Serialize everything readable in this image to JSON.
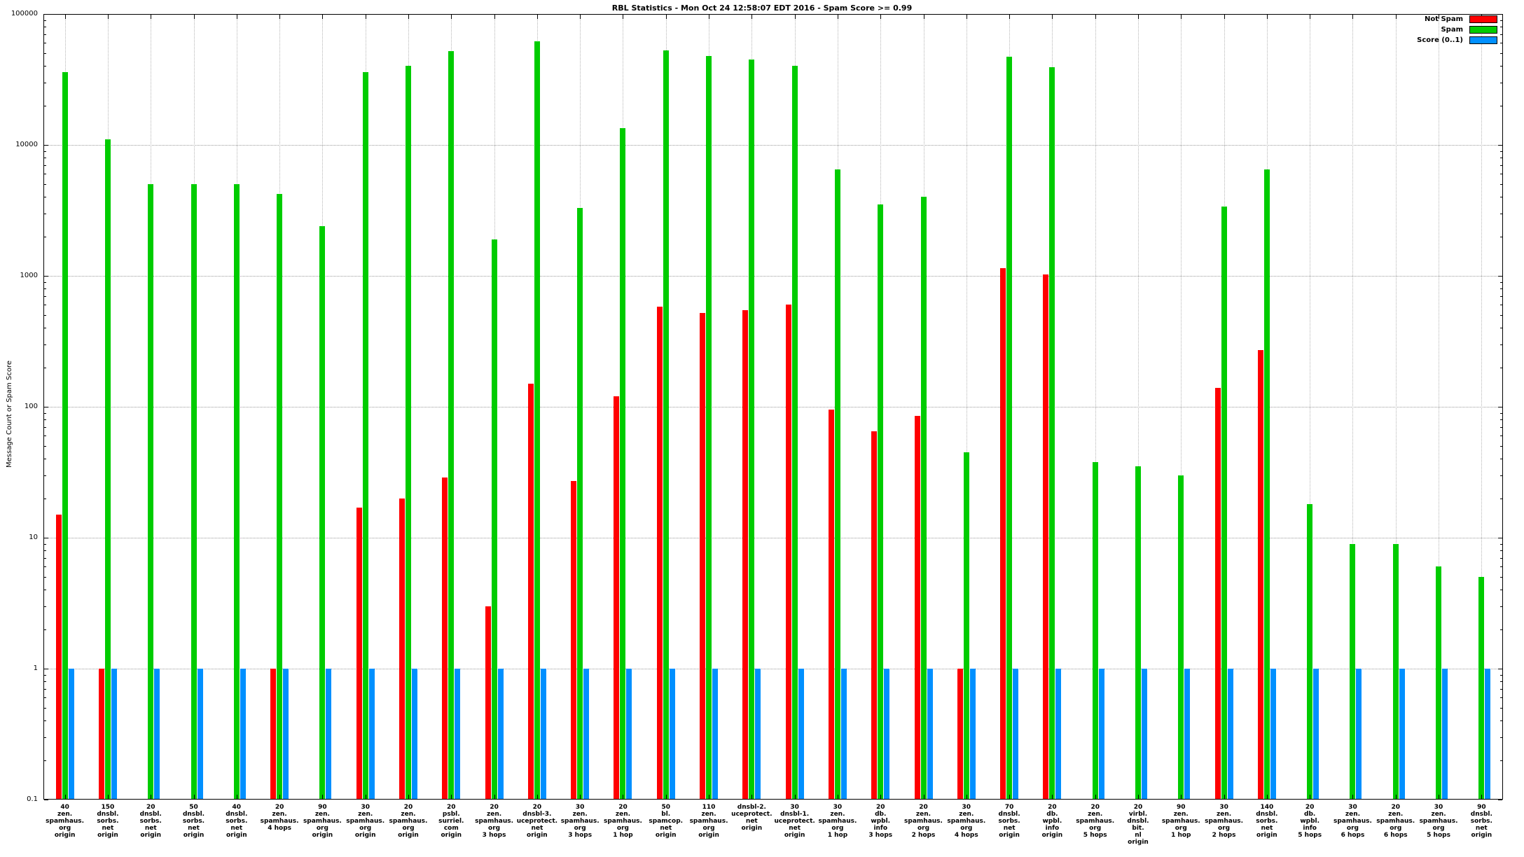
{
  "title": "RBL Statistics - Mon Oct 24 12:58:07 EDT 2016 - Spam Score >= 0.99",
  "ylabel": "Message Count or Spam Score",
  "legend": [
    {
      "label": "Not Spam",
      "color": "#ff0000"
    },
    {
      "label": "Spam",
      "color": "#00cc00"
    },
    {
      "label": "Score (0..1)",
      "color": "#0090ff"
    }
  ],
  "chart_data": {
    "type": "bar",
    "title": "RBL Statistics - Mon Oct 24 12:58:07 EDT 2016 - Spam Score >= 0.99",
    "xlabel": "",
    "ylabel": "Message Count or Spam Score",
    "yscale": "log",
    "ylim": [
      0.1,
      100000
    ],
    "yticks": [
      0.1,
      1,
      10,
      100,
      1000,
      10000,
      100000
    ],
    "grid": "dotted",
    "legend_position": "top-right",
    "categories": [
      "40\nzen.\nspamhaus.\norg\norigin",
      "150\ndnsbl.\nsorbs.\nnet\norigin",
      "20\ndnsbl.\nsorbs.\nnet\norigin",
      "50\ndnsbl.\nsorbs.\nnet\norigin",
      "40\ndnsbl.\nsorbs.\nnet\norigin",
      "20\nzen.\nspamhaus.\n4 hops",
      "90\nzen.\nspamhaus.\norg\norigin",
      "30\nzen.\nspamhaus.\norg\norigin",
      "20\nzen.\nspamhaus.\norg\norigin",
      "20\npsbl.\nsurriel.\ncom\norigin",
      "20\nzen.\nspamhaus.\norg\n3 hops",
      "20\ndnsbl-3.\nuceprotect.\nnet\norigin",
      "30\nzen.\nspamhaus.\norg\n3 hops",
      "20\nzen.\nspamhaus.\norg\n1 hop",
      "50\nbl.\nspamcop.\nnet\norigin",
      "110\nzen.\nspamhaus.\norg\norigin",
      "dnsbl-2.\nuceprotect.\nnet\norigin",
      "30\ndnsbl-1.\nuceprotect.\nnet\norigin",
      "30\nzen.\nspamhaus.\norg\n1 hop",
      "20\ndb.\nwpbl.\ninfo\n3 hops",
      "20\nzen.\nspamhaus.\norg\n2 hops",
      "30\nzen.\nspamhaus.\norg\n4 hops",
      "70\ndnsbl.\nsorbs.\nnet\norigin",
      "20\ndb.\nwpbl.\ninfo\norigin",
      "20\nzen.\nspamhaus.\norg\n5 hops",
      "20\nvirbl.\ndnsbl.\nbit.\nnl\norigin",
      "90\nzen.\nspamhaus.\norg\n1 hop",
      "30\nzen.\nspamhaus.\norg\n2 hops",
      "140\ndnsbl.\nsorbs.\nnet\norigin",
      "20\ndb.\nwpbl.\ninfo\n5 hops",
      "30\nzen.\nspamhaus.\norg\n6 hops",
      "20\nzen.\nspamhaus.\norg\n6 hops",
      "30\nzen.\nspamhaus.\norg\n5 hops",
      "90\ndnsbl.\nsorbs.\nnet\norigin"
    ],
    "series": [
      {
        "name": "Not Spam",
        "color": "#ff0000",
        "values": [
          15,
          1,
          null,
          null,
          null,
          1,
          null,
          17,
          20,
          29,
          3,
          150,
          27,
          120,
          580,
          520,
          550,
          600,
          95,
          65,
          85,
          1,
          1150,
          1020,
          null,
          null,
          null,
          140,
          270,
          null,
          null,
          null,
          null,
          null
        ]
      },
      {
        "name": "Spam",
        "color": "#00cc00",
        "values": [
          36000,
          11000,
          5000,
          5000,
          5000,
          4200,
          2400,
          36000,
          40000,
          52000,
          1900,
          62000,
          3300,
          13500,
          53000,
          48000,
          45000,
          40000,
          6500,
          3500,
          4000,
          45,
          47000,
          39000,
          38,
          35,
          30,
          3400,
          6500,
          18,
          9,
          9,
          6,
          5
        ]
      },
      {
        "name": "Score (0..1)",
        "color": "#0090ff",
        "values": [
          1,
          1,
          1,
          1,
          1,
          1,
          1,
          1,
          1,
          1,
          1,
          1,
          1,
          1,
          1,
          1,
          1,
          1,
          1,
          1,
          1,
          1,
          1,
          1,
          1,
          1,
          1,
          1,
          1,
          1,
          1,
          1,
          1,
          1
        ]
      }
    ]
  }
}
